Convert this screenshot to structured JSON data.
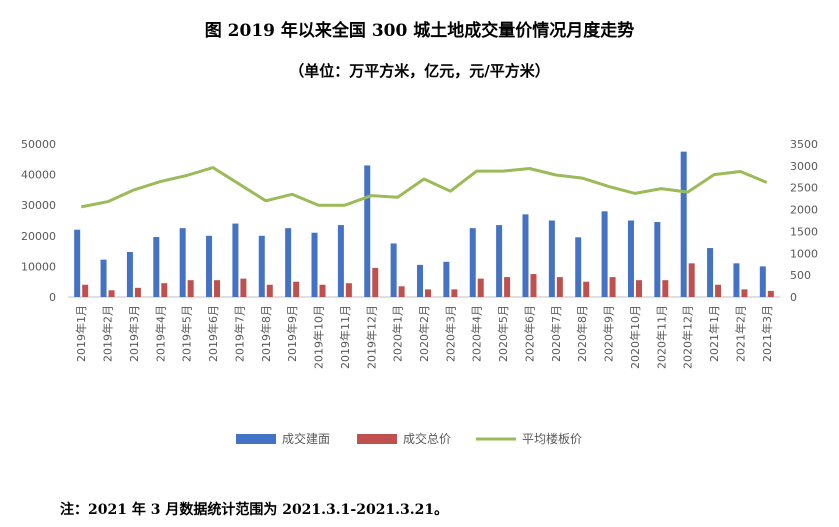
{
  "chart_data": {
    "type": "bar",
    "title": "图  2019 年以来全国 300 城土地成交量价情况月度走势",
    "subtitle": "（单位：万平方米，亿元，元/平方米）",
    "note": "注：2021 年 3 月数据统计范围为 2021.3.1-2021.3.21。",
    "categories": [
      "2019年1月",
      "2019年2月",
      "2019年3月",
      "2019年4月",
      "2019年5月",
      "2019年6月",
      "2019年7月",
      "2019年8月",
      "2019年9月",
      "2019年10月",
      "2019年11月",
      "2019年12月",
      "2020年1月",
      "2020年2月",
      "2020年3月",
      "2020年4月",
      "2020年5月",
      "2020年6月",
      "2020年7月",
      "2020年8月",
      "2020年9月",
      "2020年10月",
      "2020年11月",
      "2020年12月",
      "2021年1月",
      "2021年2月",
      "2021年3月"
    ],
    "left_ylim": [
      0,
      50000
    ],
    "left_yticks": [
      "0",
      "10000",
      "20000",
      "30000",
      "40000",
      "50000"
    ],
    "right_ylim": [
      0,
      3500
    ],
    "right_yticks": [
      "0",
      "500",
      "1000",
      "1500",
      "2000",
      "2500",
      "3000",
      "3500"
    ],
    "legend_position": "bottom",
    "grid": false,
    "series": [
      {
        "name": "成交建面",
        "type": "bar",
        "axis": "left",
        "color": "#4472C4",
        "values": [
          22000,
          12200,
          14700,
          19600,
          22500,
          20000,
          24000,
          20000,
          22500,
          21000,
          23500,
          43000,
          17500,
          10500,
          11500,
          22500,
          23500,
          27000,
          25000,
          19500,
          28000,
          25000,
          24500,
          47500,
          16000,
          11000,
          10000
        ]
      },
      {
        "name": "成交总价",
        "type": "bar",
        "axis": "left",
        "color": "#C0504D",
        "values": [
          4000,
          2200,
          3000,
          4500,
          5500,
          5500,
          6000,
          4000,
          5000,
          4000,
          4500,
          9500,
          3500,
          2500,
          2500,
          6000,
          6500,
          7500,
          6500,
          5000,
          6500,
          5500,
          5500,
          11000,
          4000,
          2500,
          2000
        ]
      },
      {
        "name": "平均楼板价",
        "type": "line",
        "axis": "right",
        "color": "#9BBB59",
        "values": [
          2060,
          2180,
          2450,
          2640,
          2780,
          2960,
          2580,
          2200,
          2350,
          2100,
          2100,
          2320,
          2280,
          2700,
          2420,
          2880,
          2880,
          2940,
          2790,
          2720,
          2530,
          2370,
          2480,
          2400,
          2800,
          2870,
          2620
        ]
      }
    ]
  }
}
